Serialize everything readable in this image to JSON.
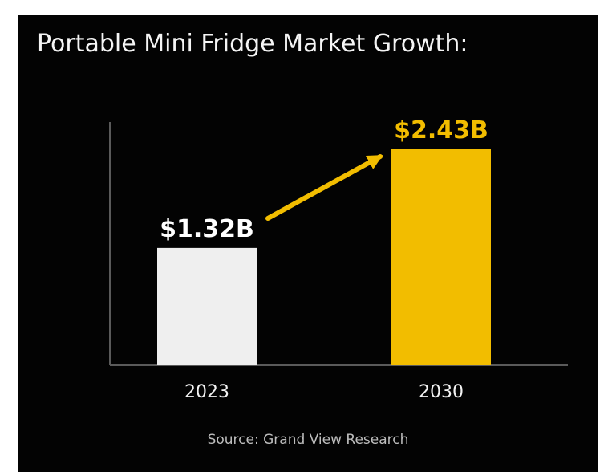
{
  "chart_data": {
    "type": "bar",
    "title": "Portable Mini Fridge Market Growth:",
    "categories": [
      "2023",
      "2030"
    ],
    "values": [
      1.32,
      2.43
    ],
    "value_labels": [
      "$1.32B",
      "$2.43B"
    ],
    "unit": "USD billions",
    "ylim": [
      0,
      2.43
    ],
    "grid": false,
    "source": "Source: Grand View Research"
  },
  "colors": {
    "background": "#030303",
    "bar_2023": "#efefef",
    "bar_2030": "#f2bd00",
    "label_2023": "#ffffff",
    "label_2030": "#f2bd00",
    "arrow": "#f2bd00",
    "axis": "#5a5a5a",
    "title": "#f5f5f5",
    "source": "#bdbdbd"
  }
}
